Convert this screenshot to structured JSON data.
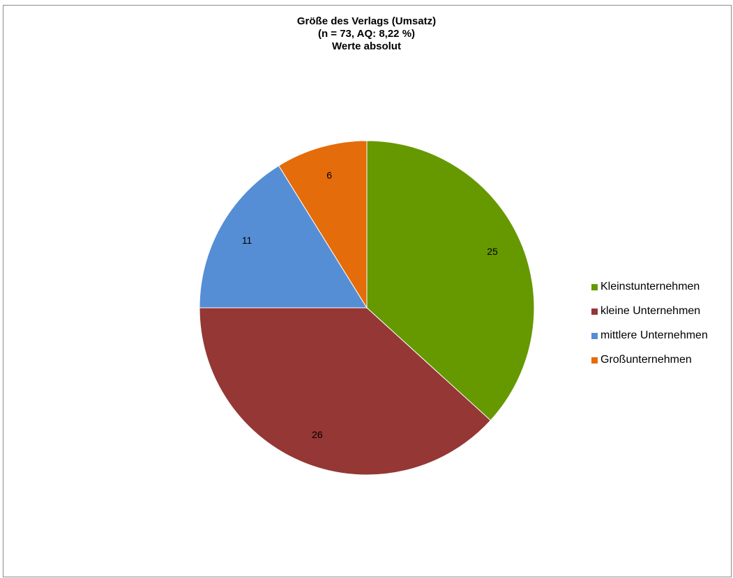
{
  "chart_data": {
    "type": "pie",
    "title": [
      "Größe des Verlags (Umsatz)",
      "(n = 73, AQ: 8,22 %)",
      "Werte absolut"
    ],
    "slices": [
      {
        "label": "Kleinstunternehmen",
        "value": 25,
        "color": "#669900"
      },
      {
        "label": "kleine Unternehmen",
        "value": 26,
        "color": "#953735"
      },
      {
        "label": "mittlere Unternehmen",
        "value": 11,
        "color": "#558ED5"
      },
      {
        "label": "Großunternehmen",
        "value": 6,
        "color": "#E46C0A"
      }
    ],
    "start_angle": "12 o'clock",
    "direction": "clockwise",
    "data_labels": true,
    "legend_position": "right"
  }
}
